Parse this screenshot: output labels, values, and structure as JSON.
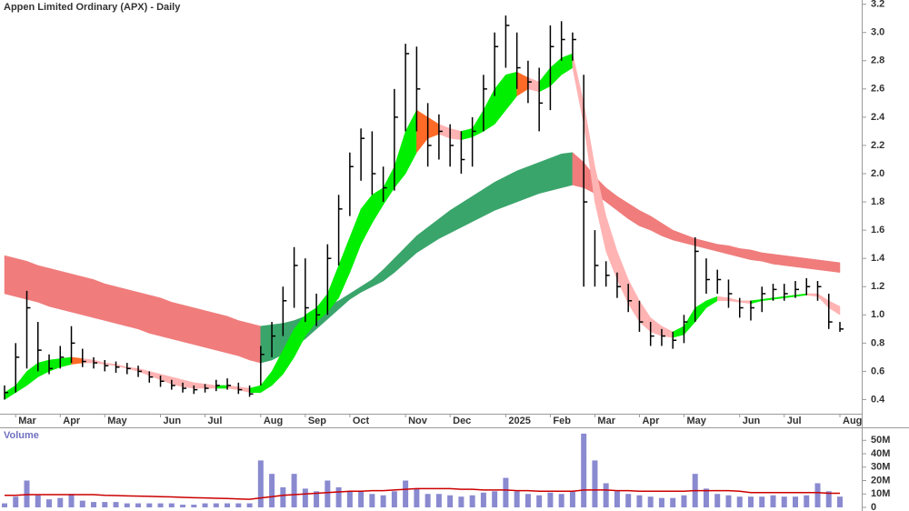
{
  "chart_data": {
    "type": "stock",
    "title": "Appen Limited Ordinary (APX) - Daily",
    "categories": [
      null,
      "Mar",
      null,
      null,
      null,
      "Apr",
      null,
      null,
      null,
      "May",
      null,
      null,
      null,
      null,
      "Jun",
      null,
      null,
      null,
      "Jul",
      null,
      null,
      null,
      null,
      "Aug",
      null,
      null,
      null,
      "Sep",
      null,
      null,
      null,
      "Oct",
      null,
      null,
      null,
      null,
      "Nov",
      null,
      null,
      null,
      "Dec",
      null,
      null,
      null,
      null,
      "2025",
      null,
      null,
      null,
      "Feb",
      null,
      null,
      null,
      "Mar",
      null,
      null,
      null,
      "Apr",
      null,
      null,
      null,
      "May",
      null,
      null,
      null,
      null,
      "Jun",
      null,
      null,
      null,
      "Jul",
      null,
      null,
      null,
      null,
      "Aug"
    ],
    "price": {
      "color": "#000000",
      "high": [
        0.5,
        0.8,
        1.17,
        0.95,
        0.72,
        0.78,
        0.92,
        0.76,
        0.7,
        0.68,
        0.67,
        0.66,
        0.64,
        0.6,
        0.57,
        0.54,
        0.52,
        0.5,
        0.51,
        0.54,
        0.55,
        0.52,
        0.5,
        0.78,
        0.95,
        1.2,
        1.48,
        1.4,
        1.15,
        1.5,
        1.85,
        2.15,
        2.32,
        2.3,
        2.05,
        2.6,
        2.92,
        2.9,
        2.5,
        2.42,
        2.35,
        2.3,
        2.4,
        2.7,
        3.0,
        3.12,
        3.0,
        2.8,
        2.75,
        3.05,
        3.08,
        3.0,
        2.7,
        1.6,
        1.38,
        1.3,
        1.22,
        1.1,
        0.95,
        0.9,
        0.88,
        1.0,
        1.55,
        1.4,
        1.32,
        1.25,
        1.12,
        1.1,
        1.2,
        1.22,
        1.22,
        1.24,
        1.26,
        1.24,
        1.15,
        0.95
      ],
      "low": [
        0.4,
        0.45,
        0.62,
        0.6,
        0.58,
        0.62,
        0.66,
        0.63,
        0.62,
        0.6,
        0.59,
        0.58,
        0.56,
        0.52,
        0.49,
        0.47,
        0.45,
        0.44,
        0.45,
        0.46,
        0.47,
        0.44,
        0.42,
        0.5,
        0.7,
        0.85,
        1.05,
        0.95,
        0.92,
        1.0,
        1.35,
        1.7,
        1.95,
        1.85,
        1.8,
        1.88,
        2.3,
        2.3,
        2.05,
        2.1,
        2.05,
        2.0,
        2.05,
        2.3,
        2.55,
        2.75,
        2.6,
        2.5,
        2.3,
        2.45,
        2.8,
        2.8,
        1.2,
        1.2,
        1.2,
        1.12,
        1.02,
        0.88,
        0.78,
        0.78,
        0.76,
        0.8,
        0.95,
        1.15,
        1.15,
        1.05,
        0.98,
        0.96,
        1.02,
        1.1,
        1.1,
        1.12,
        1.14,
        1.1,
        0.9,
        0.88
      ],
      "close": [
        0.45,
        0.7,
        1.05,
        0.75,
        0.62,
        0.7,
        0.8,
        0.67,
        0.66,
        0.64,
        0.63,
        0.62,
        0.6,
        0.56,
        0.53,
        0.5,
        0.48,
        0.47,
        0.48,
        0.5,
        0.5,
        0.47,
        0.44,
        0.72,
        0.85,
        1.1,
        1.35,
        1.05,
        1.0,
        1.4,
        1.75,
        2.05,
        2.25,
        2.0,
        1.9,
        2.4,
        2.85,
        2.6,
        2.2,
        2.3,
        2.2,
        2.1,
        2.3,
        2.6,
        2.9,
        3.05,
        2.75,
        2.65,
        2.5,
        2.9,
        2.95,
        2.95,
        1.8,
        1.35,
        1.28,
        1.2,
        1.1,
        0.95,
        0.85,
        0.85,
        0.82,
        0.95,
        1.45,
        1.25,
        1.25,
        1.15,
        1.05,
        1.05,
        1.15,
        1.18,
        1.15,
        1.18,
        1.2,
        1.2,
        0.95,
        0.9
      ]
    },
    "bands": [
      {
        "up_color": "#3aa56b",
        "down_color": "#f07c7c",
        "mixed_color": "#ff6a26",
        "upper": [
          1.42,
          1.4,
          1.38,
          1.35,
          1.33,
          1.31,
          1.29,
          1.27,
          1.25,
          1.22,
          1.2,
          1.18,
          1.16,
          1.14,
          1.12,
          1.09,
          1.07,
          1.05,
          1.03,
          1.01,
          0.99,
          0.96,
          0.94,
          0.92,
          0.93,
          0.94,
          0.96,
          0.99,
          1.02,
          1.06,
          1.1,
          1.15,
          1.2,
          1.25,
          1.32,
          1.4,
          1.48,
          1.56,
          1.62,
          1.68,
          1.74,
          1.79,
          1.84,
          1.89,
          1.94,
          1.98,
          2.02,
          2.05,
          2.08,
          2.11,
          2.14,
          2.15,
          2.08,
          1.98,
          1.9,
          1.84,
          1.79,
          1.74,
          1.7,
          1.65,
          1.6,
          1.57,
          1.54,
          1.52,
          1.5,
          1.49,
          1.47,
          1.46,
          1.44,
          1.43,
          1.42,
          1.41,
          1.4,
          1.39,
          1.38,
          1.37
        ],
        "lower": [
          1.15,
          1.13,
          1.11,
          1.09,
          1.06,
          1.04,
          1.02,
          1.0,
          0.98,
          0.96,
          0.94,
          0.92,
          0.9,
          0.87,
          0.85,
          0.83,
          0.81,
          0.79,
          0.77,
          0.75,
          0.73,
          0.71,
          0.68,
          0.66,
          0.68,
          0.72,
          0.77,
          0.83,
          0.9,
          0.97,
          1.04,
          1.11,
          1.16,
          1.2,
          1.24,
          1.3,
          1.37,
          1.44,
          1.49,
          1.54,
          1.58,
          1.62,
          1.66,
          1.7,
          1.74,
          1.77,
          1.8,
          1.83,
          1.86,
          1.88,
          1.9,
          1.92,
          1.9,
          1.86,
          1.8,
          1.74,
          1.68,
          1.63,
          1.6,
          1.56,
          1.53,
          1.51,
          1.49,
          1.47,
          1.45,
          1.43,
          1.41,
          1.39,
          1.38,
          1.36,
          1.35,
          1.34,
          1.33,
          1.32,
          1.31,
          1.3
        ]
      },
      {
        "up_color": "#00ee00",
        "down_color": "#ffb3b3",
        "mixed_color": "#ff6a26",
        "upper": [
          0.45,
          0.5,
          0.6,
          0.66,
          0.68,
          0.69,
          0.7,
          0.69,
          0.68,
          0.66,
          0.65,
          0.63,
          0.62,
          0.6,
          0.58,
          0.56,
          0.54,
          0.52,
          0.51,
          0.5,
          0.5,
          0.49,
          0.48,
          0.5,
          0.6,
          0.75,
          0.9,
          1.0,
          1.05,
          1.15,
          1.35,
          1.55,
          1.75,
          1.85,
          1.9,
          2.05,
          2.3,
          2.45,
          2.4,
          2.35,
          2.32,
          2.3,
          2.32,
          2.45,
          2.6,
          2.7,
          2.72,
          2.68,
          2.65,
          2.75,
          2.82,
          2.85,
          2.5,
          2.05,
          1.7,
          1.45,
          1.25,
          1.1,
          0.98,
          0.92,
          0.88,
          0.92,
          1.05,
          1.1,
          1.13,
          1.12,
          1.1,
          1.1,
          1.11,
          1.12,
          1.13,
          1.14,
          1.15,
          1.15,
          1.1,
          1.06
        ],
        "lower": [
          0.4,
          0.45,
          0.5,
          0.56,
          0.6,
          0.63,
          0.65,
          0.66,
          0.66,
          0.65,
          0.64,
          0.62,
          0.6,
          0.57,
          0.54,
          0.51,
          0.49,
          0.48,
          0.48,
          0.48,
          0.48,
          0.47,
          0.45,
          0.45,
          0.5,
          0.58,
          0.7,
          0.85,
          0.95,
          1.02,
          1.12,
          1.3,
          1.5,
          1.65,
          1.78,
          1.9,
          2.0,
          2.15,
          2.25,
          2.28,
          2.25,
          2.24,
          2.26,
          2.3,
          2.35,
          2.45,
          2.55,
          2.6,
          2.58,
          2.62,
          2.7,
          2.75,
          2.35,
          1.8,
          1.45,
          1.25,
          1.08,
          0.95,
          0.88,
          0.85,
          0.84,
          0.86,
          0.95,
          1.05,
          1.1,
          1.1,
          1.09,
          1.08,
          1.1,
          1.11,
          1.12,
          1.13,
          1.14,
          1.13,
          1.05,
          1.0
        ]
      }
    ],
    "ylim": [
      0.3,
      3.23
    ],
    "yticks": [
      0.4,
      0.6,
      0.8,
      {
        "value": 1,
        "label": "1.0"
      },
      1.2,
      1.4,
      1.6,
      1.8,
      {
        "value": 2,
        "label": "2.0"
      },
      2.2,
      2.4,
      2.6,
      2.8,
      {
        "value": 3,
        "label": "3.0"
      },
      3.2
    ],
    "volume": {
      "label": "Volume",
      "color": "#8a8ad0",
      "ma_color": "#cc0000",
      "values": [
        3,
        8,
        20,
        9,
        6,
        7,
        10,
        5,
        4,
        4,
        4,
        3,
        3,
        3,
        3,
        3,
        2,
        2,
        3,
        3,
        3,
        3,
        3,
        35,
        25,
        15,
        25,
        14,
        12,
        20,
        15,
        12,
        12,
        10,
        9,
        12,
        20,
        14,
        10,
        10,
        9,
        8,
        9,
        11,
        12,
        22,
        12,
        10,
        9,
        11,
        10,
        12,
        55,
        35,
        18,
        12,
        10,
        9,
        8,
        7,
        7,
        9,
        25,
        14,
        10,
        9,
        8,
        8,
        8,
        9,
        8,
        8,
        9,
        18,
        12,
        8
      ],
      "ma": [
        9,
        9,
        9.5,
        9.5,
        9.5,
        9.5,
        9.5,
        9.5,
        9.5,
        9,
        8.8,
        8.6,
        8.4,
        8.2,
        8,
        7.8,
        7.5,
        7.2,
        7,
        6.8,
        6.6,
        6.3,
        6,
        7,
        8,
        9,
        9.5,
        10,
        10.5,
        11,
        11.5,
        12,
        12,
        12.5,
        12.5,
        13,
        13.5,
        14,
        14,
        14,
        14,
        13.5,
        13.5,
        13,
        13,
        13,
        12.5,
        12.5,
        12,
        12,
        12,
        12,
        13,
        13,
        13,
        12.5,
        12.5,
        12,
        12,
        12,
        12,
        12,
        12.5,
        12.5,
        12.5,
        12.5,
        12,
        11,
        11,
        11,
        11,
        11,
        11,
        11,
        10.5,
        10.5
      ],
      "ylim": [
        0,
        59
      ],
      "yticks": [
        0,
        {
          "value": 10,
          "label": "10M"
        },
        {
          "value": 20,
          "label": "20M"
        },
        {
          "value": 30,
          "label": "30M"
        },
        {
          "value": 40,
          "label": "40M"
        },
        {
          "value": 50,
          "label": "50M"
        }
      ]
    }
  }
}
